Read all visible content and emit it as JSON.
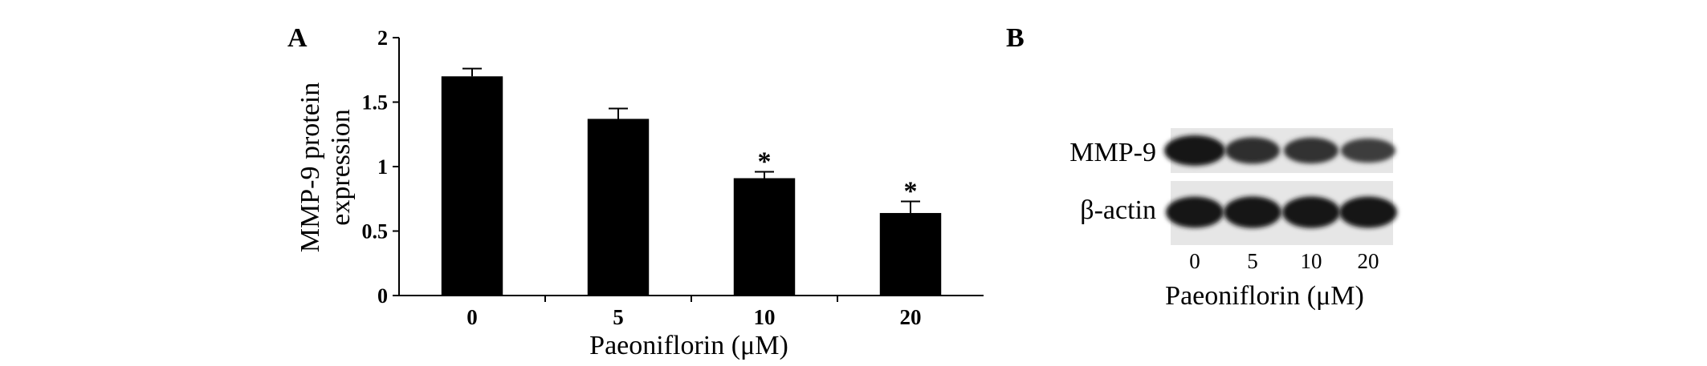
{
  "panel_a_label": "A",
  "panel_b_label": "B",
  "chart_data": {
    "type": "bar",
    "categories": [
      "0",
      "5",
      "10",
      "20"
    ],
    "values": [
      1.7,
      1.37,
      0.91,
      0.64
    ],
    "errors": [
      0.06,
      0.08,
      0.05,
      0.09
    ],
    "significance": [
      "",
      "",
      "*",
      "*"
    ],
    "xlabel": "Paeoniflorin (μM)",
    "ylabel_lines": [
      "MMP-9 protein",
      "expression"
    ],
    "ylim": [
      0,
      2
    ],
    "yticks": [
      "0",
      "0.5",
      "1",
      "1.5",
      "2"
    ],
    "ytick_values": [
      0,
      0.5,
      1,
      1.5,
      2
    ],
    "grid": false,
    "bar_color": "#000000"
  },
  "blot": {
    "rows": [
      {
        "label": "MMP-9",
        "intensities": [
          1.0,
          0.72,
          0.68,
          0.55
        ]
      },
      {
        "label": "β-actin",
        "intensities": [
          0.95,
          0.97,
          0.97,
          0.96
        ]
      }
    ],
    "lanes": [
      "0",
      "5",
      "10",
      "20"
    ],
    "xlabel": "Paeoniflorin (μM)",
    "background": "#e6e6e6"
  }
}
